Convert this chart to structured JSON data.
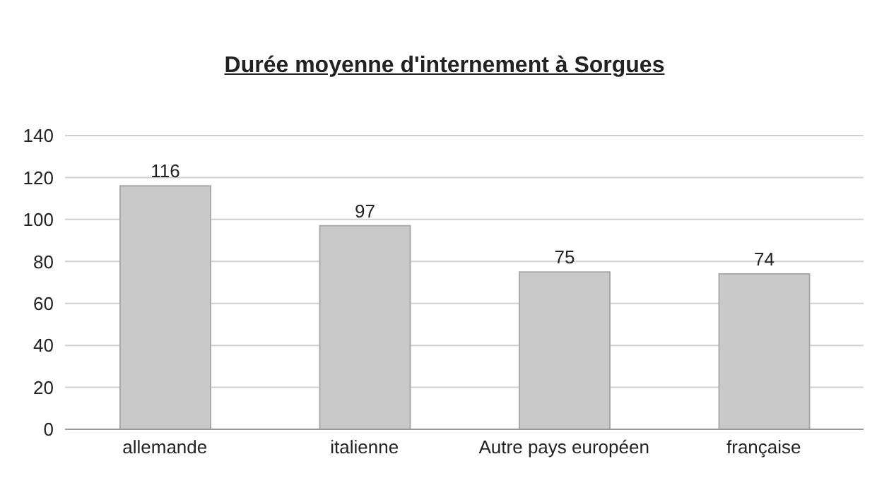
{
  "chart_data": {
    "type": "bar",
    "title": "Durée moyenne d'internement à Sorgues",
    "categories": [
      "allemande",
      "italienne",
      "Autre pays européen",
      "française"
    ],
    "values": [
      116,
      97,
      75,
      74
    ],
    "color": "#c9c9c9",
    "ylim": [
      0,
      140
    ],
    "yticks": [
      0,
      20,
      40,
      60,
      80,
      100,
      120,
      140
    ],
    "grid": "y",
    "data_labels": true
  }
}
